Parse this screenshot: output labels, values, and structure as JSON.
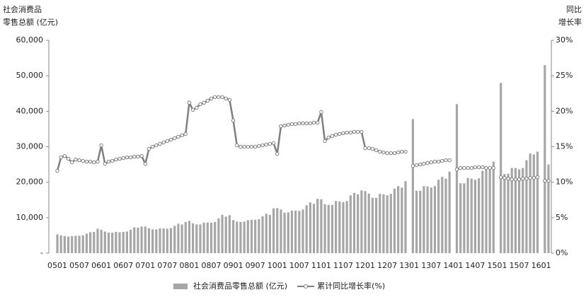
{
  "chart_data": {
    "type": "bar_line",
    "ylabel": [
      "社会消费品",
      "零售总额 (亿元)"
    ],
    "y2label": [
      "同比",
      "增长率"
    ],
    "categories": [
      "0501",
      null,
      null,
      null,
      null,
      null,
      "0507",
      null,
      null,
      null,
      null,
      null,
      "0601",
      null,
      null,
      null,
      null,
      null,
      "0607",
      null,
      null,
      null,
      null,
      null,
      "0701",
      null,
      null,
      null,
      null,
      null,
      "0707",
      null,
      null,
      null,
      null,
      null,
      "0801",
      null,
      null,
      null,
      null,
      null,
      "0807",
      null,
      null,
      null,
      null,
      null,
      "0901",
      null,
      null,
      null,
      null,
      null,
      "0907",
      null,
      null,
      null,
      null,
      null,
      "1001",
      null,
      null,
      null,
      null,
      null,
      "1007",
      null,
      null,
      null,
      null,
      null,
      "1101",
      null,
      null,
      null,
      null,
      null,
      "1107",
      null,
      null,
      null,
      null,
      null,
      "1201",
      null,
      null,
      null,
      null,
      null,
      "1207",
      null,
      null,
      null,
      null,
      null,
      "1301",
      null,
      null,
      null,
      null,
      null,
      "1307",
      null,
      null,
      null,
      null,
      null,
      "1401",
      null,
      null,
      null,
      null,
      null,
      "1407",
      null,
      null,
      null,
      null,
      null,
      "1501",
      null,
      null,
      null,
      null,
      null,
      "1507",
      null,
      null,
      null,
      null,
      null,
      "1601",
      null,
      null
    ],
    "series": [
      {
        "name": "社会消费品零售总额 (亿元)",
        "color": "#a6a6a6",
        "kind": "bar",
        "values": [
          5300,
          5000,
          4800,
          4700,
          4800,
          4900,
          4900,
          5000,
          5500,
          5900,
          6000,
          6900,
          6600,
          6100,
          5800,
          5800,
          6000,
          5900,
          6000,
          6100,
          6600,
          7300,
          7200,
          7500,
          7500,
          7000,
          6700,
          6700,
          7000,
          7000,
          6900,
          7100,
          7700,
          8300,
          8100,
          8800,
          9100,
          8400,
          8100,
          8100,
          8600,
          8600,
          8600,
          8800,
          9800,
          10800,
          10300,
          10700,
          9300,
          8900,
          8800,
          8900,
          9300,
          9400,
          9400,
          9600,
          10400,
          11100,
          10800,
          12600,
          12700,
          12300,
          11400,
          11500,
          12000,
          12000,
          11900,
          12300,
          13500,
          14300,
          13900,
          15300,
          15200,
          13800,
          13600,
          13600,
          14700,
          14600,
          14400,
          14700,
          16300,
          17000,
          16600,
          17700,
          17500,
          16800,
          15600,
          15600,
          16700,
          16600,
          16300,
          16700,
          18200,
          18900,
          18500,
          20300,
          null,
          37800,
          17600,
          17600,
          18900,
          18800,
          18500,
          18900,
          20700,
          21500,
          21000,
          23000,
          null,
          42000,
          19700,
          19700,
          21200,
          21000,
          20700,
          21100,
          23200,
          24300,
          23500,
          25800,
          null,
          48000,
          22300,
          22400,
          24000,
          24000,
          23600,
          24000,
          26200,
          28100,
          27800,
          28600,
          null,
          53000,
          25000
        ]
      },
      {
        "name": "累计同比增长率(%)",
        "color": "#7f7f7f",
        "kind": "line",
        "axis": "y2",
        "values": [
          11.6,
          13.5,
          13.7,
          13.3,
          12.8,
          13.2,
          13.1,
          13.0,
          12.9,
          12.9,
          12.8,
          12.9,
          15.2,
          12.6,
          12.9,
          13.0,
          13.2,
          13.3,
          13.4,
          13.5,
          13.5,
          13.6,
          13.6,
          13.7,
          12.6,
          14.7,
          15.0,
          15.2,
          15.4,
          15.6,
          15.8,
          16.0,
          16.2,
          16.4,
          16.6,
          16.8,
          21.2,
          20.2,
          20.5,
          21.0,
          21.2,
          21.5,
          21.8,
          22.0,
          22.0,
          22.0,
          21.8,
          21.6,
          18.7,
          15.2,
          15.0,
          15.0,
          15.0,
          15.0,
          15.0,
          15.1,
          15.2,
          15.3,
          15.4,
          15.5,
          14.0,
          17.9,
          18.0,
          18.1,
          18.2,
          18.2,
          18.3,
          18.3,
          18.3,
          18.3,
          18.4,
          18.4,
          19.9,
          15.8,
          16.3,
          16.5,
          16.7,
          16.8,
          16.9,
          17.0,
          17.0,
          17.1,
          17.1,
          17.1,
          14.8,
          14.8,
          14.7,
          14.5,
          14.3,
          14.2,
          14.1,
          14.1,
          14.1,
          14.2,
          14.3,
          14.3,
          null,
          12.3,
          12.4,
          12.5,
          12.6,
          12.7,
          12.8,
          12.9,
          12.9,
          13.0,
          13.1,
          13.1,
          null,
          11.8,
          12.0,
          12.0,
          12.0,
          12.0,
          12.1,
          12.1,
          12.1,
          12.0,
          12.0,
          12.0,
          null,
          10.7,
          10.6,
          10.5,
          10.4,
          10.4,
          10.4,
          10.5,
          10.5,
          10.6,
          10.6,
          10.7,
          null,
          10.2,
          10.2
        ]
      }
    ],
    "ylim": [
      0,
      60000
    ],
    "yticks": [
      {
        "value": 0,
        "label": "-"
      },
      {
        "value": 10000,
        "label": "10,000"
      },
      {
        "value": 20000,
        "label": "20,000"
      },
      {
        "value": 30000,
        "label": "30,000"
      },
      {
        "value": 40000,
        "label": "40,000"
      },
      {
        "value": 50000,
        "label": "50,000"
      },
      {
        "value": 60000,
        "label": "60,000"
      }
    ],
    "y2lim": [
      0,
      30
    ],
    "y2ticks": [
      {
        "value": 0,
        "label": "0%"
      },
      {
        "value": 5,
        "label": "5%"
      },
      {
        "value": 10,
        "label": "10%"
      },
      {
        "value": 15,
        "label": "15%"
      },
      {
        "value": 20,
        "label": "20%"
      },
      {
        "value": 25,
        "label": "25%"
      },
      {
        "value": 30,
        "label": "30%"
      }
    ],
    "legend": "bottom"
  }
}
